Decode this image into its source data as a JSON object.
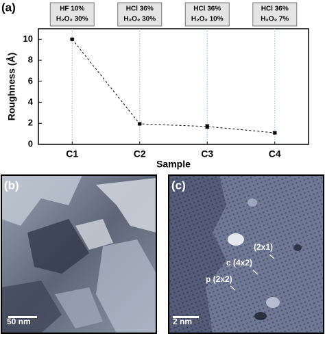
{
  "chart_data": {
    "type": "line",
    "panel_label": "(a)",
    "treatments": [
      [
        "HF 10%",
        "H₂O₂ 30%"
      ],
      [
        "HCl 36%",
        "H₂O₂ 30%"
      ],
      [
        "HCl 36%",
        "H₂O₂ 10%"
      ],
      [
        "HCl 36%",
        "H₂O₂ 7%"
      ]
    ],
    "categories": [
      "C1",
      "C2",
      "C3",
      "C4"
    ],
    "values": [
      10,
      1.95,
      1.7,
      1.1
    ],
    "errors": [
      0.05,
      0.08,
      0.18,
      0.08
    ],
    "color": "#000000",
    "x_label": "Sample",
    "y_label": "Roughness (Å)",
    "ylim": [
      0,
      11
    ],
    "yticks": [
      0,
      2,
      4,
      6,
      8,
      10
    ]
  },
  "images": [
    {
      "panel_label": "(b)",
      "scale_bar": "50 nm"
    },
    {
      "panel_label": "(c)",
      "scale_bar": "2 nm",
      "annotations": [
        "(2x1)",
        "c (4x2)",
        "p (2x2)"
      ]
    }
  ]
}
